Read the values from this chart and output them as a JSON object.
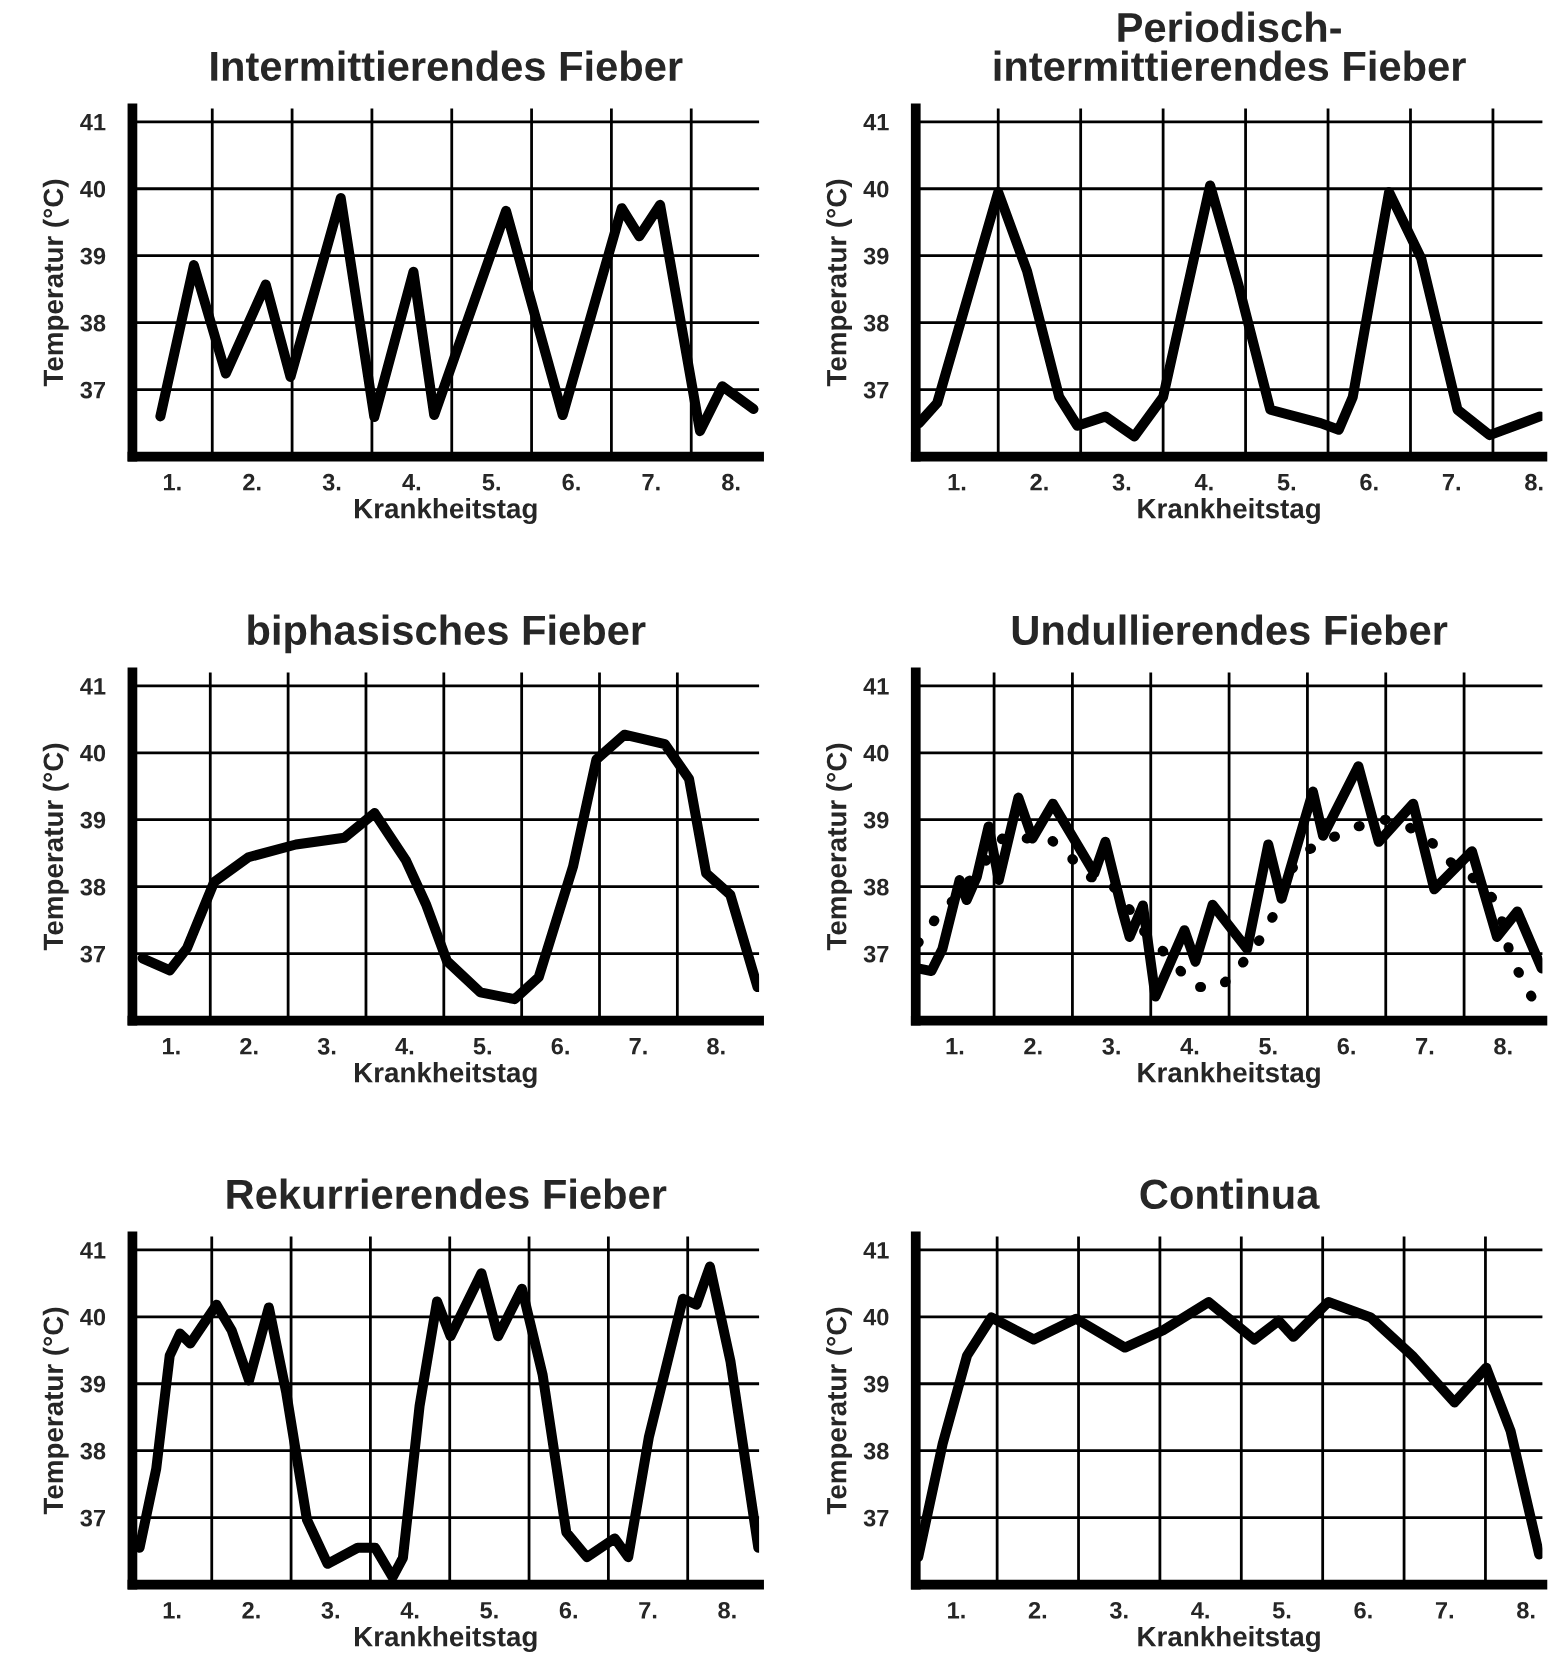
{
  "chart_data": [
    {
      "type": "line",
      "title": "Intermittierendes Fieber",
      "xlabel": "Krankheitstag",
      "ylabel": "Temperatur (°C)",
      "xlim": [
        0.5,
        8.35
      ],
      "ylim": [
        36,
        41.2
      ],
      "yticks": [
        37,
        38,
        39,
        40,
        41
      ],
      "grid": true,
      "line_style": "solid",
      "xticks": [
        {
          "value": 1,
          "label": "1."
        },
        {
          "value": 1.5,
          "label": null
        },
        {
          "value": 2,
          "label": "2."
        },
        {
          "value": 2.5,
          "label": null
        },
        {
          "value": 3,
          "label": "3."
        },
        {
          "value": 3.5,
          "label": null
        },
        {
          "value": 4,
          "label": "4."
        },
        {
          "value": 4.5,
          "label": null
        },
        {
          "value": 5,
          "label": "5."
        },
        {
          "value": 5.5,
          "label": null
        },
        {
          "value": 6,
          "label": "6."
        },
        {
          "value": 6.5,
          "label": null
        },
        {
          "value": 7,
          "label": "7."
        },
        {
          "value": 7.5,
          "label": null
        },
        {
          "value": 8,
          "label": "8."
        }
      ],
      "series": [
        {
          "color": "#000000",
          "x": [
            0.85,
            1.27,
            1.67,
            2.17,
            2.48,
            3.11,
            3.53,
            4.02,
            4.28,
            5.18,
            5.89,
            6.63,
            6.85,
            7.11,
            7.61,
            7.89,
            8.28
          ],
          "values": [
            36.6,
            38.86,
            37.24,
            38.57,
            37.19,
            39.86,
            36.59,
            38.76,
            36.62,
            39.67,
            36.62,
            39.71,
            39.29,
            39.76,
            36.38,
            37.05,
            36.71
          ]
        }
      ]
    },
    {
      "type": "line",
      "title": "Periodisch-\nintermittierendes Fieber",
      "xlabel": "Krankheitstag",
      "ylabel": "Temperatur (°C)",
      "xlim": [
        0.5,
        8.1
      ],
      "ylim": [
        36,
        41.2
      ],
      "yticks": [
        37,
        38,
        39,
        40,
        41
      ],
      "grid": true,
      "line_style": "solid",
      "xticks": [
        {
          "value": 1,
          "label": "1."
        },
        {
          "value": 1.5,
          "label": null
        },
        {
          "value": 2,
          "label": "2."
        },
        {
          "value": 2.5,
          "label": null
        },
        {
          "value": 3,
          "label": "3."
        },
        {
          "value": 3.5,
          "label": null
        },
        {
          "value": 4,
          "label": "4."
        },
        {
          "value": 4.5,
          "label": null
        },
        {
          "value": 5,
          "label": "5."
        },
        {
          "value": 5.5,
          "label": null
        },
        {
          "value": 6,
          "label": "6."
        },
        {
          "value": 6.5,
          "label": null
        },
        {
          "value": 7,
          "label": "7."
        },
        {
          "value": 7.5,
          "label": null
        },
        {
          "value": 8,
          "label": "8."
        }
      ],
      "series": [
        {
          "color": "#000000",
          "x": [
            0.54,
            0.76,
            1.5,
            1.85,
            2.24,
            2.46,
            2.8,
            3.15,
            3.5,
            4.07,
            4.41,
            4.8,
            5.41,
            5.63,
            5.8,
            6.24,
            6.63,
            7.07,
            7.46,
            8.07
          ],
          "values": [
            36.5,
            36.8,
            39.95,
            38.77,
            36.89,
            36.46,
            36.6,
            36.3,
            36.89,
            40.05,
            38.58,
            36.7,
            36.5,
            36.4,
            36.89,
            39.95,
            38.96,
            36.7,
            36.32,
            36.6
          ]
        }
      ]
    },
    {
      "type": "line",
      "title": "biphasisches Fieber",
      "xlabel": "Krankheitstag",
      "ylabel": "Temperatur (°C)",
      "xlim": [
        0.5,
        8.55
      ],
      "ylim": [
        36,
        41.2
      ],
      "yticks": [
        37,
        38,
        39,
        40,
        41
      ],
      "grid": true,
      "line_style": "solid",
      "xticks": [
        {
          "value": 1,
          "label": "1."
        },
        {
          "value": 1.5,
          "label": null
        },
        {
          "value": 2,
          "label": "2."
        },
        {
          "value": 2.5,
          "label": null
        },
        {
          "value": 3,
          "label": "3."
        },
        {
          "value": 3.5,
          "label": null
        },
        {
          "value": 4,
          "label": "4."
        },
        {
          "value": 4.5,
          "label": null
        },
        {
          "value": 5,
          "label": "5."
        },
        {
          "value": 5.5,
          "label": null
        },
        {
          "value": 6,
          "label": "6."
        },
        {
          "value": 6.5,
          "label": null
        },
        {
          "value": 7,
          "label": "7."
        },
        {
          "value": 7.5,
          "label": null
        },
        {
          "value": 8,
          "label": "8."
        }
      ],
      "series": [
        {
          "color": "#000000",
          "x": [
            0.63,
            0.98,
            1.2,
            1.55,
            1.99,
            2.6,
            3.22,
            3.61,
            4.01,
            4.27,
            4.54,
            4.97,
            5.41,
            5.72,
            6.16,
            6.46,
            6.82,
            7.34,
            7.65,
            7.87,
            8.18,
            8.53
          ],
          "values": [
            36.93,
            36.75,
            37.08,
            38.07,
            38.44,
            38.63,
            38.73,
            39.1,
            38.4,
            37.74,
            36.89,
            36.42,
            36.32,
            36.65,
            38.3,
            39.9,
            40.27,
            40.13,
            39.61,
            38.2,
            37.88,
            36.5
          ]
        }
      ]
    },
    {
      "type": "line",
      "title": "Undullierendes Fieber",
      "xlabel": "Krankheitstag",
      "ylabel": "Temperatur (°C)",
      "xlim": [
        0.5,
        8.5
      ],
      "ylim": [
        36,
        41.2
      ],
      "yticks": [
        37,
        38,
        39,
        40,
        41
      ],
      "grid": true,
      "xticks": [
        {
          "value": 1,
          "label": "1."
        },
        {
          "value": 1.5,
          "label": null
        },
        {
          "value": 2,
          "label": "2."
        },
        {
          "value": 2.5,
          "label": null
        },
        {
          "value": 3,
          "label": "3."
        },
        {
          "value": 3.5,
          "label": null
        },
        {
          "value": 4,
          "label": "4."
        },
        {
          "value": 4.5,
          "label": null
        },
        {
          "value": 5,
          "label": "5."
        },
        {
          "value": 5.5,
          "label": null
        },
        {
          "value": 6,
          "label": "6."
        },
        {
          "value": 6.5,
          "label": null
        },
        {
          "value": 7,
          "label": "7."
        },
        {
          "value": 7.5,
          "label": null
        },
        {
          "value": 8,
          "label": "8."
        }
      ],
      "series": [
        {
          "color": "#000000",
          "line_style": "solid",
          "x": [
            0.53,
            0.7,
            0.84,
            1.06,
            1.15,
            1.28,
            1.43,
            1.56,
            1.81,
            1.99,
            2.25,
            2.78,
            2.92,
            3.14,
            3.23,
            3.4,
            3.56,
            3.93,
            4.07,
            4.29,
            4.73,
            5.0,
            5.17,
            5.57,
            5.7,
            6.15,
            6.41,
            6.85,
            7.12,
            7.6,
            7.92,
            8.18,
            8.49
          ],
          "values": [
            36.78,
            36.74,
            37.07,
            38.1,
            37.8,
            38.15,
            38.9,
            38.1,
            39.33,
            38.72,
            39.24,
            38.2,
            38.67,
            37.63,
            37.25,
            37.72,
            36.36,
            37.35,
            36.88,
            37.73,
            37.07,
            38.63,
            37.82,
            39.42,
            38.76,
            39.8,
            38.67,
            39.24,
            37.96,
            38.53,
            37.25,
            37.63,
            36.78
          ]
        },
        {
          "color": "#000000",
          "line_style": "dotted",
          "x": [
            0.53,
            0.66,
            0.82,
            1.01,
            1.19,
            1.46,
            1.63,
            1.9,
            2.21,
            2.52,
            2.69,
            2.96,
            3.14,
            3.4,
            3.67,
            3.85,
            4.07,
            4.38,
            4.6,
            4.77,
            4.95,
            5.07,
            5.26,
            5.48,
            5.79,
            6.15,
            6.5,
            6.81,
            7.08,
            7.3,
            7.65,
            7.87,
            8.0,
            8.09,
            8.21,
            8.36
          ],
          "values": [
            37.16,
            37.35,
            37.65,
            37.82,
            38.1,
            38.48,
            38.76,
            38.72,
            38.72,
            38.39,
            38.15,
            38.1,
            37.82,
            37.35,
            37.02,
            36.78,
            36.5,
            36.5,
            36.74,
            37.02,
            37.3,
            37.58,
            38.2,
            38.53,
            38.72,
            38.9,
            39.0,
            38.88,
            38.67,
            38.39,
            38.1,
            37.82,
            37.44,
            36.97,
            36.69,
            36.36
          ]
        }
      ]
    },
    {
      "type": "line",
      "title": "Rekurrierendes Fieber",
      "xlabel": "Krankheitstag",
      "ylabel": "Temperatur (°C)",
      "xlim": [
        0.5,
        8.4
      ],
      "ylim": [
        36,
        41.2
      ],
      "yticks": [
        37,
        38,
        39,
        40,
        41
      ],
      "grid": true,
      "line_style": "solid",
      "xticks": [
        {
          "value": 1,
          "label": "1."
        },
        {
          "value": 1.5,
          "label": null
        },
        {
          "value": 2,
          "label": "2."
        },
        {
          "value": 2.5,
          "label": null
        },
        {
          "value": 3,
          "label": "3."
        },
        {
          "value": 3.5,
          "label": null
        },
        {
          "value": 4,
          "label": "4."
        },
        {
          "value": 4.5,
          "label": null
        },
        {
          "value": 5,
          "label": "5."
        },
        {
          "value": 5.5,
          "label": null
        },
        {
          "value": 6,
          "label": "6."
        },
        {
          "value": 6.5,
          "label": null
        },
        {
          "value": 7,
          "label": "7."
        },
        {
          "value": 7.5,
          "label": null
        },
        {
          "value": 8,
          "label": "8."
        }
      ],
      "series": [
        {
          "color": "#000000",
          "x": [
            0.59,
            0.8,
            0.97,
            1.1,
            1.23,
            1.56,
            1.75,
            1.97,
            2.22,
            2.44,
            2.7,
            2.96,
            3.34,
            3.56,
            3.78,
            3.91,
            4.12,
            4.34,
            4.51,
            4.9,
            5.11,
            5.41,
            5.67,
            5.97,
            6.23,
            6.58,
            6.75,
            7.01,
            7.44,
            7.61,
            7.78,
            8.04,
            8.39
          ],
          "values": [
            36.55,
            37.73,
            39.42,
            39.75,
            39.6,
            40.18,
            39.8,
            39.05,
            40.14,
            38.86,
            36.97,
            36.31,
            36.55,
            36.55,
            36.11,
            36.4,
            38.67,
            40.23,
            39.71,
            40.65,
            39.71,
            40.42,
            39.14,
            36.78,
            36.41,
            36.69,
            36.41,
            38.2,
            40.27,
            40.18,
            40.75,
            39.33,
            36.55
          ]
        }
      ]
    },
    {
      "type": "line",
      "title": "Continua",
      "xlabel": "Krankheitstag",
      "ylabel": "Temperatur (°C)",
      "xlim": [
        0.5,
        8.2
      ],
      "ylim": [
        36,
        41.2
      ],
      "yticks": [
        37,
        38,
        39,
        40,
        41
      ],
      "grid": true,
      "line_style": "solid",
      "xticks": [
        {
          "value": 1,
          "label": "1."
        },
        {
          "value": 1.5,
          "label": null
        },
        {
          "value": 2,
          "label": "2."
        },
        {
          "value": 2.5,
          "label": null
        },
        {
          "value": 3,
          "label": "3."
        },
        {
          "value": 3.5,
          "label": null
        },
        {
          "value": 4,
          "label": "4."
        },
        {
          "value": 4.5,
          "label": null
        },
        {
          "value": 5,
          "label": "5."
        },
        {
          "value": 5.5,
          "label": null
        },
        {
          "value": 6,
          "label": "6."
        },
        {
          "value": 6.5,
          "label": null
        },
        {
          "value": 7,
          "label": "7."
        },
        {
          "value": 7.5,
          "label": null
        },
        {
          "value": 8,
          "label": "8."
        }
      ],
      "series": [
        {
          "color": "#000000",
          "x": [
            0.53,
            0.83,
            1.13,
            1.43,
            1.95,
            2.47,
            3.07,
            3.54,
            4.1,
            4.66,
            4.96,
            5.14,
            5.57,
            6.09,
            6.6,
            7.12,
            7.51,
            7.81,
            8.16
          ],
          "values": [
            36.41,
            38.1,
            39.42,
            39.99,
            39.66,
            39.97,
            39.54,
            39.8,
            40.22,
            39.66,
            39.94,
            39.7,
            40.22,
            39.99,
            39.42,
            38.72,
            39.24,
            38.29,
            36.45
          ]
        }
      ]
    }
  ]
}
